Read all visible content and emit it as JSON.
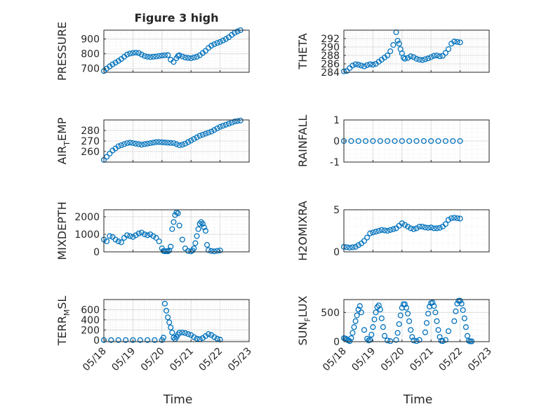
{
  "figure_title": "Figure 3 high",
  "marker_color": "#0072BD",
  "x_tick_labels": [
    "05/18",
    "05/19",
    "05/20",
    "05/21",
    "05/22",
    "05/23"
  ],
  "x_label": "Time",
  "chart_data": [
    {
      "type": "scatter",
      "id": "pressure",
      "title": "Figure 3 high",
      "ylabel": "PRESSURE",
      "ylim": [
        675,
        960
      ],
      "yticks": [
        700,
        800,
        900
      ],
      "xlim": [
        0,
        5
      ],
      "grid": true,
      "x": [
        0.0,
        0.1,
        0.2,
        0.3,
        0.4,
        0.5,
        0.6,
        0.7,
        0.8,
        0.9,
        1.0,
        1.1,
        1.2,
        1.3,
        1.4,
        1.5,
        1.6,
        1.7,
        1.8,
        1.9,
        2.0,
        2.1,
        2.2,
        2.3,
        2.4,
        2.5,
        2.55,
        2.6,
        2.7,
        2.8,
        2.9,
        3.0,
        3.1,
        3.2,
        3.3,
        3.4,
        3.5,
        3.6,
        3.7,
        3.8,
        3.9,
        4.0,
        4.1,
        4.2,
        4.3,
        4.4,
        4.5,
        4.6,
        4.7
      ],
      "y": [
        683,
        700,
        715,
        728,
        740,
        752,
        765,
        780,
        795,
        802,
        806,
        808,
        805,
        795,
        785,
        780,
        778,
        780,
        782,
        785,
        788,
        790,
        791,
        760,
        745,
        770,
        785,
        790,
        782,
        775,
        772,
        770,
        775,
        780,
        790,
        805,
        820,
        840,
        855,
        865,
        873,
        880,
        890,
        900,
        912,
        928,
        942,
        952,
        960
      ]
    },
    {
      "type": "scatter",
      "id": "theta",
      "ylabel": "THETA",
      "ylim": [
        284,
        294
      ],
      "yticks": [
        284,
        286,
        288,
        290,
        292
      ],
      "xlim": [
        0,
        5
      ],
      "grid": true,
      "x": [
        0.0,
        0.1,
        0.2,
        0.3,
        0.4,
        0.5,
        0.6,
        0.7,
        0.8,
        0.9,
        1.0,
        1.1,
        1.2,
        1.3,
        1.4,
        1.5,
        1.6,
        1.7,
        1.8,
        1.85,
        1.9,
        1.95,
        2.0,
        2.05,
        2.1,
        2.2,
        2.3,
        2.4,
        2.5,
        2.6,
        2.7,
        2.8,
        2.9,
        3.0,
        3.1,
        3.2,
        3.3,
        3.4,
        3.5,
        3.6,
        3.7,
        3.8,
        3.9,
        4.0
      ],
      "y": [
        284.2,
        284.3,
        285.0,
        285.6,
        285.9,
        285.8,
        285.6,
        285.4,
        285.7,
        285.9,
        285.8,
        286.0,
        286.5,
        287.0,
        287.5,
        288.0,
        289.0,
        290.5,
        293.5,
        291.5,
        290.8,
        289.5,
        288.5,
        287.5,
        287.2,
        287.4,
        287.8,
        287.6,
        287.2,
        287.0,
        286.9,
        287.1,
        287.3,
        287.6,
        287.9,
        288.0,
        287.8,
        287.9,
        288.6,
        289.5,
        290.8,
        291.3,
        291.2,
        291.1
      ]
    },
    {
      "type": "scatter",
      "id": "air_temp",
      "ylabel": "AIR_TEMP",
      "ylim": [
        250,
        290
      ],
      "yticks": [
        260,
        270,
        280
      ],
      "xlim": [
        0,
        5
      ],
      "grid": true,
      "x": [
        0.0,
        0.1,
        0.2,
        0.3,
        0.4,
        0.5,
        0.6,
        0.7,
        0.8,
        0.9,
        1.0,
        1.1,
        1.2,
        1.3,
        1.4,
        1.5,
        1.6,
        1.7,
        1.8,
        1.9,
        2.0,
        2.1,
        2.2,
        2.3,
        2.4,
        2.5,
        2.6,
        2.7,
        2.8,
        2.9,
        3.0,
        3.1,
        3.2,
        3.3,
        3.4,
        3.5,
        3.6,
        3.7,
        3.8,
        3.9,
        4.0,
        4.1,
        4.2,
        4.3,
        4.4,
        4.5,
        4.6,
        4.7
      ],
      "y": [
        252,
        255,
        258,
        261,
        263,
        265,
        266,
        267,
        268,
        268.5,
        268,
        267.5,
        267,
        266.5,
        267,
        267.5,
        268,
        268.5,
        269,
        269,
        268.8,
        268.6,
        268.4,
        268.2,
        268,
        267,
        266,
        266.5,
        267.5,
        269,
        270.5,
        272,
        273.5,
        275,
        276,
        277,
        278,
        279,
        280.5,
        282,
        283.5,
        284.5,
        285.5,
        286.5,
        287.5,
        288.5,
        289,
        289.5
      ]
    },
    {
      "type": "scatter",
      "id": "rainfall",
      "ylabel": "RAINFALL",
      "ylim": [
        -1,
        1
      ],
      "yticks": [
        -1,
        0,
        1
      ],
      "xlim": [
        0,
        5
      ],
      "grid": true,
      "x": [
        0.0,
        0.25,
        0.5,
        0.75,
        1.0,
        1.25,
        1.5,
        1.75,
        2.0,
        2.25,
        2.5,
        2.75,
        3.0,
        3.25,
        3.5,
        3.75,
        4.0
      ],
      "y": [
        0,
        0,
        0,
        0,
        0,
        0,
        0,
        0,
        0,
        0,
        0,
        0,
        0,
        0,
        0,
        0,
        0
      ]
    },
    {
      "type": "scatter",
      "id": "mixdepth",
      "ylabel": "MIXDEPTH",
      "ylim": [
        0,
        2400
      ],
      "yticks": [
        0,
        1000,
        2000
      ],
      "xlim": [
        0,
        5
      ],
      "grid": true,
      "x": [
        0.0,
        0.1,
        0.2,
        0.3,
        0.4,
        0.5,
        0.6,
        0.7,
        0.8,
        0.9,
        1.0,
        1.1,
        1.2,
        1.3,
        1.4,
        1.5,
        1.6,
        1.7,
        1.8,
        1.9,
        2.0,
        2.05,
        2.1,
        2.15,
        2.2,
        2.25,
        2.3,
        2.35,
        2.4,
        2.45,
        2.5,
        2.55,
        2.6,
        2.7,
        2.8,
        2.9,
        3.0,
        3.05,
        3.1,
        3.15,
        3.2,
        3.25,
        3.3,
        3.35,
        3.4,
        3.45,
        3.5,
        3.55,
        3.6,
        3.7,
        3.8,
        3.9,
        4.0
      ],
      "y": [
        700,
        600,
        900,
        850,
        700,
        600,
        550,
        800,
        950,
        900,
        850,
        950,
        1050,
        1100,
        1000,
        950,
        1000,
        900,
        800,
        600,
        200,
        50,
        30,
        40,
        30,
        80,
        300,
        1300,
        1700,
        2100,
        2250,
        2200,
        1500,
        700,
        200,
        50,
        30,
        80,
        200,
        500,
        900,
        1300,
        1600,
        1700,
        1600,
        1400,
        1200,
        400,
        100,
        50,
        30,
        60,
        80
      ]
    },
    {
      "type": "scatter",
      "id": "h2omixra",
      "ylabel": "H2OMIXRA",
      "ylim": [
        0,
        5
      ],
      "yticks": [
        0,
        5
      ],
      "xlim": [
        0,
        5
      ],
      "grid": true,
      "x": [
        0.0,
        0.1,
        0.2,
        0.3,
        0.4,
        0.5,
        0.6,
        0.7,
        0.8,
        0.9,
        1.0,
        1.1,
        1.2,
        1.3,
        1.4,
        1.5,
        1.6,
        1.7,
        1.8,
        1.9,
        2.0,
        2.1,
        2.2,
        2.3,
        2.4,
        2.5,
        2.6,
        2.7,
        2.8,
        2.9,
        3.0,
        3.1,
        3.2,
        3.3,
        3.4,
        3.5,
        3.6,
        3.7,
        3.8,
        3.9,
        4.0
      ],
      "y": [
        0.6,
        0.55,
        0.5,
        0.55,
        0.6,
        0.8,
        1.0,
        1.3,
        1.7,
        2.2,
        2.3,
        2.4,
        2.5,
        2.6,
        2.55,
        2.5,
        2.6,
        2.7,
        2.8,
        3.1,
        3.4,
        3.2,
        3.0,
        2.8,
        2.7,
        2.8,
        3.0,
        3.0,
        2.9,
        2.85,
        2.9,
        2.8,
        2.8,
        2.85,
        3.0,
        3.3,
        3.8,
        4.0,
        4.05,
        4.0,
        3.95
      ]
    },
    {
      "type": "scatter",
      "id": "terr_msl",
      "ylabel": "TERR_MSL",
      "ylim": [
        -30,
        800
      ],
      "yticks": [
        0,
        200,
        400,
        600
      ],
      "xlim": [
        0,
        5
      ],
      "grid": true,
      "x": [
        0.0,
        0.25,
        0.5,
        0.75,
        1.0,
        1.25,
        1.5,
        1.75,
        2.0,
        2.05,
        2.1,
        2.15,
        2.2,
        2.25,
        2.3,
        2.35,
        2.4,
        2.45,
        2.5,
        2.55,
        2.6,
        2.7,
        2.8,
        2.9,
        3.0,
        3.1,
        3.2,
        3.3,
        3.4,
        3.5,
        3.6,
        3.7,
        3.8,
        3.9,
        4.0
      ],
      "y": [
        0,
        0,
        0,
        0,
        0,
        0,
        0,
        0,
        0,
        50,
        720,
        580,
        450,
        350,
        250,
        150,
        50,
        20,
        60,
        110,
        150,
        150,
        140,
        120,
        100,
        60,
        30,
        20,
        40,
        80,
        120,
        100,
        60,
        30,
        10
      ]
    },
    {
      "type": "scatter",
      "id": "sun_flux",
      "ylabel": "SUN_FLUX",
      "ylim": [
        0,
        720
      ],
      "yticks": [
        0,
        500
      ],
      "xlim": [
        0,
        5
      ],
      "grid": true,
      "x": [
        0.0,
        0.05,
        0.1,
        0.15,
        0.2,
        0.25,
        0.3,
        0.35,
        0.4,
        0.45,
        0.5,
        0.55,
        0.6,
        0.7,
        0.8,
        0.85,
        0.9,
        0.95,
        1.0,
        1.05,
        1.1,
        1.15,
        1.2,
        1.25,
        1.3,
        1.35,
        1.4,
        1.5,
        1.6,
        1.8,
        1.85,
        1.9,
        1.95,
        2.0,
        2.05,
        2.1,
        2.15,
        2.2,
        2.25,
        2.3,
        2.35,
        2.4,
        2.5,
        2.6,
        2.8,
        2.85,
        2.9,
        2.95,
        3.0,
        3.05,
        3.1,
        3.15,
        3.2,
        3.25,
        3.3,
        3.35,
        3.4,
        3.5,
        3.6,
        3.8,
        3.85,
        3.9,
        3.95,
        4.0,
        4.05,
        4.1,
        4.15,
        4.2,
        4.25,
        4.3,
        4.35,
        4.4
      ],
      "y": [
        60,
        55,
        40,
        20,
        10,
        60,
        150,
        250,
        350,
        450,
        550,
        610,
        500,
        200,
        50,
        20,
        30,
        120,
        250,
        380,
        500,
        590,
        620,
        550,
        400,
        250,
        100,
        20,
        10,
        30,
        150,
        300,
        450,
        580,
        640,
        640,
        580,
        480,
        350,
        200,
        80,
        20,
        10,
        30,
        160,
        320,
        480,
        600,
        660,
        670,
        610,
        500,
        350,
        200,
        80,
        15,
        8,
        30,
        180,
        350,
        520,
        650,
        700,
        700,
        650,
        540,
        400,
        250,
        100,
        15,
        5,
        5
      ]
    }
  ]
}
